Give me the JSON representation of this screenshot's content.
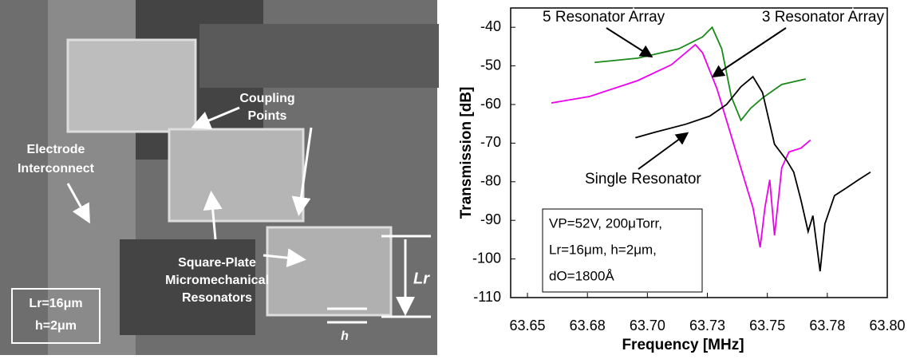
{
  "image_labels": {
    "coupling": [
      "Coupling",
      "Points"
    ],
    "electrode": [
      "Electrode",
      "Interconnect"
    ],
    "resonators": [
      "Square-Plate",
      "Micromechanical",
      "Resonators"
    ],
    "lr": "Lr",
    "h": "h",
    "inset": [
      "Lr=16μm",
      "h=2μm"
    ]
  },
  "chart_data": {
    "type": "line",
    "x_label": "Frequency [MHz]",
    "y_label": "Transmission [dB]",
    "xlim": [
      63.643,
      63.8
    ],
    "ylim": [
      -110,
      -35
    ],
    "xticks": [
      63.65,
      {
        "value": 63.675,
        "label": "63.68"
      },
      {
        "value": 63.7,
        "label": "63.70"
      },
      {
        "value": 63.725,
        "label": "63.73"
      },
      63.75,
      {
        "value": 63.775,
        "label": "63.78"
      },
      {
        "value": 63.8,
        "label": "63.80"
      }
    ],
    "yticks": [
      -110,
      -100,
      -90,
      -80,
      -70,
      -60,
      -50,
      -40
    ],
    "annotation": [
      "VP=52V, 200μTorr,",
      "Lr=16μm, h=2μm,",
      "dO=1800Å"
    ],
    "series": [
      {
        "name": "5 Resonator Array",
        "color": "#1a8a1a",
        "x": [
          63.678,
          63.696,
          63.713,
          63.723,
          63.727,
          63.731,
          63.735,
          63.739,
          63.743,
          63.748,
          63.756,
          63.766
        ],
        "values": [
          -49.1,
          -48,
          -45.6,
          -42.5,
          -40,
          -45.6,
          -58,
          -64.1,
          -61,
          -58.3,
          -54.8,
          -53.4
        ]
      },
      {
        "name": "3 Resonator Array",
        "color": "#ee00ee",
        "x": [
          63.66,
          63.676,
          63.696,
          63.71,
          63.72,
          63.723,
          63.729,
          63.736,
          63.741,
          63.744,
          63.747,
          63.749,
          63.751,
          63.753,
          63.756,
          63.759,
          63.764,
          63.768
        ],
        "values": [
          -59.6,
          -57.9,
          -53.8,
          -49.7,
          -44.5,
          -46.6,
          -55.9,
          -70.3,
          -80.6,
          -86.7,
          -97,
          -86.7,
          -79.5,
          -93.9,
          -76.4,
          -72.3,
          -71.3,
          -69.2
        ]
      },
      {
        "name": "Single Resonator",
        "color": "#000000",
        "x": [
          63.695,
          63.703,
          63.716,
          63.726,
          63.733,
          63.739,
          63.744,
          63.748,
          63.753,
          63.758,
          63.761,
          63.764,
          63.767,
          63.769,
          63.772,
          63.774,
          63.778,
          63.783,
          63.788,
          63.793
        ],
        "values": [
          -68.6,
          -67.2,
          -65.1,
          -63,
          -60,
          -55.4,
          -52.8,
          -56.9,
          -70.3,
          -74.4,
          -77.5,
          -84.7,
          -92.9,
          -88.8,
          -103.2,
          -90.9,
          -83.6,
          -81.6,
          -79.5,
          -77.5
        ]
      }
    ]
  }
}
